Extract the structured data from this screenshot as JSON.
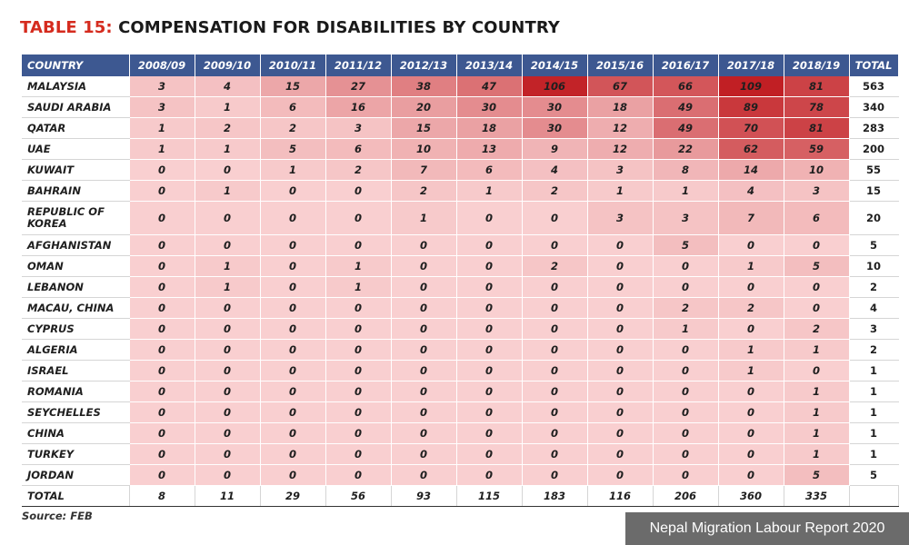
{
  "title": {
    "lead": "TABLE 15:",
    "rest": "COMPENSATION FOR DISABILITIES BY COUNTRY"
  },
  "source": "Source: FEB",
  "badge": "Nepal Migration Labour Report 2020",
  "colors": {
    "header_bg": "#3d5891",
    "title_accent": "#d52b1e",
    "heat_low": "#f9cfd0",
    "heat_high": "#c11f24"
  },
  "chart_data": {
    "type": "heatmap",
    "title": "COMPENSATION FOR DISABILITIES BY COUNTRY",
    "row_header": "COUNTRY",
    "total_header": "TOTAL",
    "columns": [
      "2008/09",
      "2009/10",
      "2010/11",
      "2011/12",
      "2012/13",
      "2013/14",
      "2014/15",
      "2015/16",
      "2016/17",
      "2017/18",
      "2018/19"
    ],
    "rows": [
      {
        "country": "MALAYSIA",
        "values": [
          3,
          4,
          15,
          27,
          38,
          47,
          106,
          67,
          66,
          109,
          81
        ],
        "total": 563
      },
      {
        "country": "SAUDI ARABIA",
        "values": [
          3,
          1,
          6,
          16,
          20,
          30,
          30,
          18,
          49,
          89,
          78
        ],
        "total": 340
      },
      {
        "country": "QATAR",
        "values": [
          1,
          2,
          2,
          3,
          15,
          18,
          30,
          12,
          49,
          70,
          81
        ],
        "total": 283
      },
      {
        "country": "UAE",
        "values": [
          1,
          1,
          5,
          6,
          10,
          13,
          9,
          12,
          22,
          62,
          59
        ],
        "total": 200
      },
      {
        "country": "KUWAIT",
        "values": [
          0,
          0,
          1,
          2,
          7,
          6,
          4,
          3,
          8,
          14,
          10
        ],
        "total": 55
      },
      {
        "country": "BAHRAIN",
        "values": [
          0,
          1,
          0,
          0,
          2,
          1,
          2,
          1,
          1,
          4,
          3
        ],
        "total": 15
      },
      {
        "country": "REPUBLIC OF KOREA",
        "values": [
          0,
          0,
          0,
          0,
          1,
          0,
          0,
          3,
          3,
          7,
          6
        ],
        "total": 20
      },
      {
        "country": "AFGHANISTAN",
        "values": [
          0,
          0,
          0,
          0,
          0,
          0,
          0,
          0,
          5,
          0,
          0
        ],
        "total": 5
      },
      {
        "country": "OMAN",
        "values": [
          0,
          1,
          0,
          1,
          0,
          0,
          2,
          0,
          0,
          1,
          5
        ],
        "total": 10
      },
      {
        "country": "LEBANON",
        "values": [
          0,
          1,
          0,
          1,
          0,
          0,
          0,
          0,
          0,
          0,
          0
        ],
        "total": 2
      },
      {
        "country": "MACAU, CHINA",
        "values": [
          0,
          0,
          0,
          0,
          0,
          0,
          0,
          0,
          2,
          2,
          0
        ],
        "total": 4
      },
      {
        "country": "CYPRUS",
        "values": [
          0,
          0,
          0,
          0,
          0,
          0,
          0,
          0,
          1,
          0,
          2
        ],
        "total": 3
      },
      {
        "country": "ALGERIA",
        "values": [
          0,
          0,
          0,
          0,
          0,
          0,
          0,
          0,
          0,
          1,
          1
        ],
        "total": 2
      },
      {
        "country": "ISRAEL",
        "values": [
          0,
          0,
          0,
          0,
          0,
          0,
          0,
          0,
          0,
          1,
          0
        ],
        "total": 1
      },
      {
        "country": "ROMANIA",
        "values": [
          0,
          0,
          0,
          0,
          0,
          0,
          0,
          0,
          0,
          0,
          1
        ],
        "total": 1
      },
      {
        "country": "SEYCHELLES",
        "values": [
          0,
          0,
          0,
          0,
          0,
          0,
          0,
          0,
          0,
          0,
          1
        ],
        "total": 1
      },
      {
        "country": "CHINA",
        "values": [
          0,
          0,
          0,
          0,
          0,
          0,
          0,
          0,
          0,
          0,
          1
        ],
        "total": 1
      },
      {
        "country": "TURKEY",
        "values": [
          0,
          0,
          0,
          0,
          0,
          0,
          0,
          0,
          0,
          0,
          1
        ],
        "total": 1
      },
      {
        "country": "JORDAN",
        "values": [
          0,
          0,
          0,
          0,
          0,
          0,
          0,
          0,
          0,
          0,
          5
        ],
        "total": 5
      }
    ],
    "totals_row": {
      "label": "TOTAL",
      "values": [
        8,
        11,
        29,
        56,
        93,
        115,
        183,
        116,
        206,
        360,
        335
      ],
      "total": ""
    }
  }
}
